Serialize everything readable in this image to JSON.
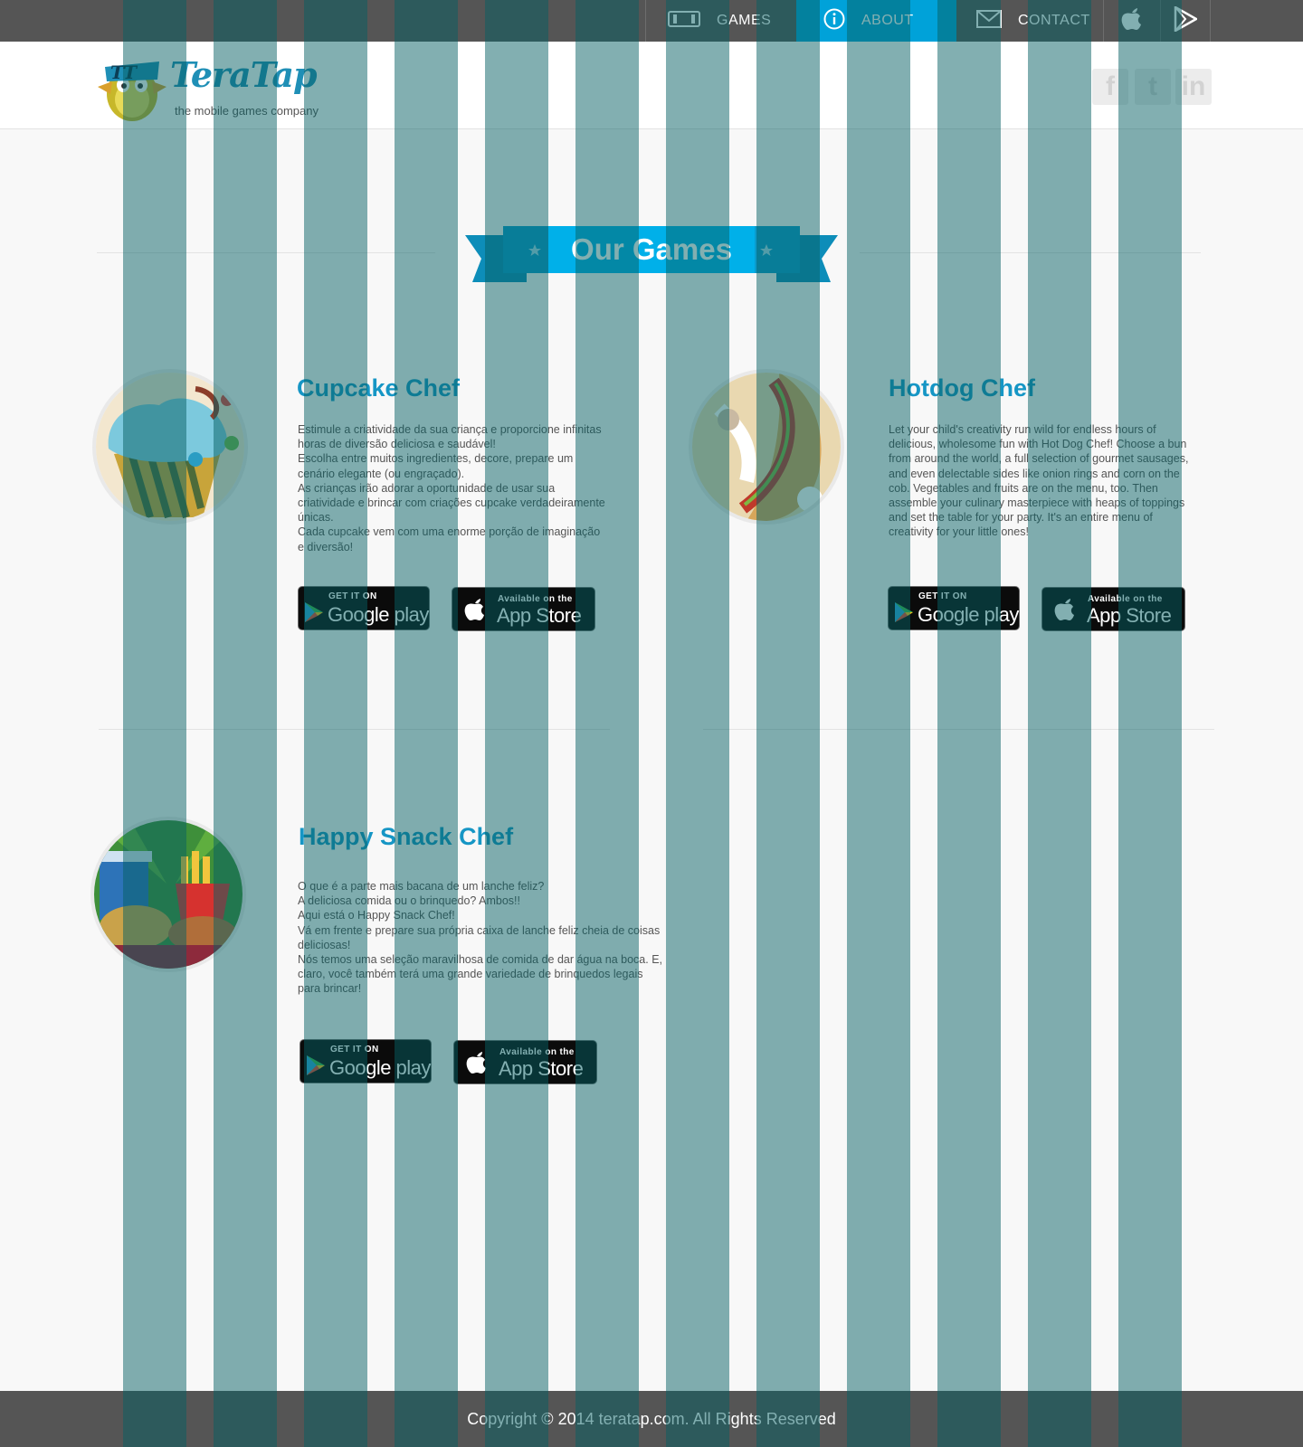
{
  "nav": {
    "games_label": "GAMES",
    "about_label": "ABOUT",
    "contact_label": "CONTACT",
    "active_color": "#00a2d9",
    "bar_color": "#555555"
  },
  "header": {
    "logo_text": "TeraTap",
    "tagline": "the mobile games company",
    "social": {
      "facebook": "f",
      "twitter": "t",
      "linkedin": "in"
    }
  },
  "section": {
    "title": "Our Games"
  },
  "games": [
    {
      "title": "Cupcake Chef",
      "icon": "cupcake-icon",
      "description": "Estimule a criatividade da sua criança e proporcione infinitas\nhoras de diversão deliciosa e saudável!\nEscolha entre muitos ingredientes, decore, prepare um\ncenário elegante (ou engraçado).\nAs crianças irão adorar a oportunidade de usar sua\ncriatividade e brincar com criações cupcake verdadeiramente\núnicas.\nCada cupcake vem com uma enorme porção de imaginação\ne diversão!",
      "google_small": "GET IT ON",
      "google_big": "Google play",
      "apple_small": "Available on the",
      "apple_big": "App Store"
    },
    {
      "title": "Hotdog Chef",
      "icon": "hotdog-icon",
      "description": "Let your child's creativity run wild for endless hours of\ndelicious, wholesome fun with Hot Dog Chef! Choose a bun\nfrom around the world, a full selection of gourmet sausages,\nand even delectable sides like onion rings and corn on the\ncob. Vegetables and fruits are on the menu, too. Then\nassemble your culinary masterpiece with heaps of toppings\nand set the table for your party. It's an entire menu of\ncreativity for your little ones!",
      "google_small": "GET IT ON",
      "google_big": "Google play",
      "apple_small": "Available on the",
      "apple_big": "App Store"
    },
    {
      "title": "Happy Snack Chef",
      "icon": "snack-icon",
      "description": "O que é a parte mais bacana de um lanche feliz?\nA deliciosa comida ou o brinquedo? Ambos!!\nAqui está o Happy Snack Chef!\nVá em frente e prepare sua própria caixa de lanche feliz cheia de coisas\ndeliciosas!\nNós temos uma seleção maravilhosa de comida de dar água na boca. E,\nclaro, você também terá uma grande variedade de brinquedos legais\npara brincar!",
      "google_small": "GET IT ON",
      "google_big": "Google play",
      "apple_small": "Available on the",
      "apple_big": "App Store"
    }
  ],
  "footer": {
    "copyright": "Copyright © 2014 teratap.com. All Rights Reserved"
  },
  "colors": {
    "accent": "#00a2d9",
    "title_blue": "#1696c5",
    "ribbon_dark": "#0d8db9",
    "stripe_overlay": "#055f64"
  }
}
